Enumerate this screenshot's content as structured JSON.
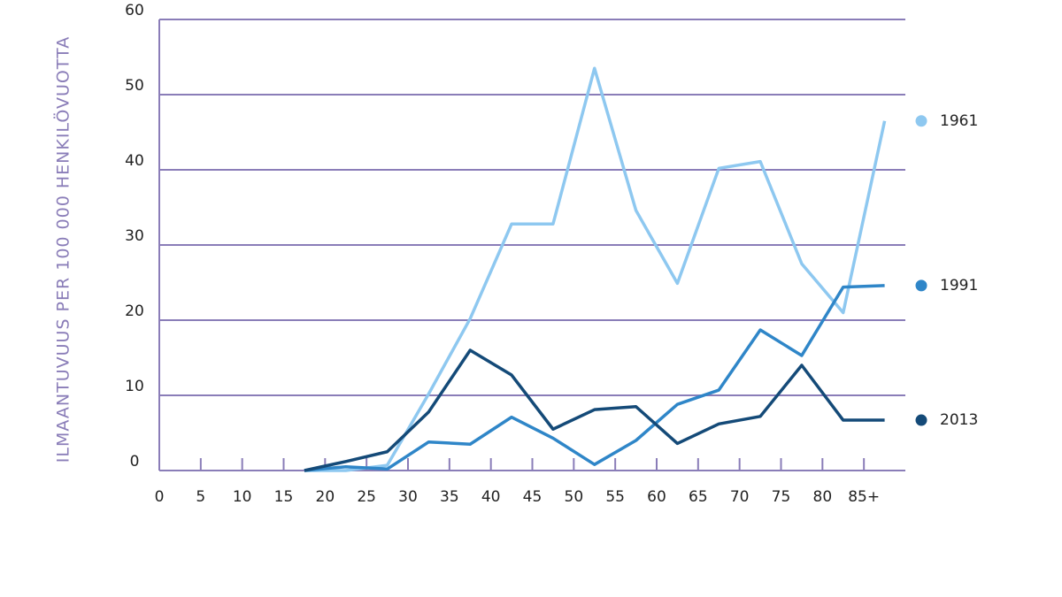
{
  "chart_data": {
    "type": "line",
    "y_axis_label": "ILMAANTUVUUS PER 100 000 HENKILÖVUOTTA",
    "x": [
      17.5,
      22.5,
      27.5,
      32.5,
      37.5,
      42.5,
      47.5,
      52.5,
      57.5,
      62.5,
      67.5,
      72.5,
      77.5,
      82.5,
      87.5
    ],
    "series": [
      {
        "name": "1961",
        "color": "#8ec8f0",
        "values": [
          0,
          0,
          0.7,
          10.2,
          20.2,
          32.8,
          32.8,
          53.5,
          34.6,
          24.9,
          40.2,
          41.1,
          27.5,
          21.0,
          46.5
        ]
      },
      {
        "name": "1991",
        "color": "#2f86c8",
        "values": [
          0,
          0.5,
          0.2,
          3.8,
          3.5,
          7.1,
          4.3,
          0.8,
          4.0,
          8.8,
          10.7,
          18.7,
          15.3,
          24.4,
          24.6
        ]
      },
      {
        "name": "2013",
        "color": "#144a78",
        "values": [
          0,
          1.2,
          2.5,
          7.8,
          16.0,
          12.7,
          5.5,
          8.1,
          8.5,
          3.6,
          6.2,
          7.2,
          14.0,
          6.7,
          6.7
        ]
      }
    ],
    "xlim": [
      0,
      90
    ],
    "xticks": [
      0,
      5,
      10,
      15,
      20,
      25,
      30,
      35,
      40,
      45,
      50,
      55,
      60,
      65,
      70,
      75,
      80,
      {
        "value": 85,
        "label": "85+"
      }
    ],
    "ylim": [
      0,
      60
    ],
    "yticks": [
      0,
      10,
      20,
      30,
      40,
      50,
      60
    ],
    "grid": true,
    "grid_color": "#8a7db8"
  }
}
